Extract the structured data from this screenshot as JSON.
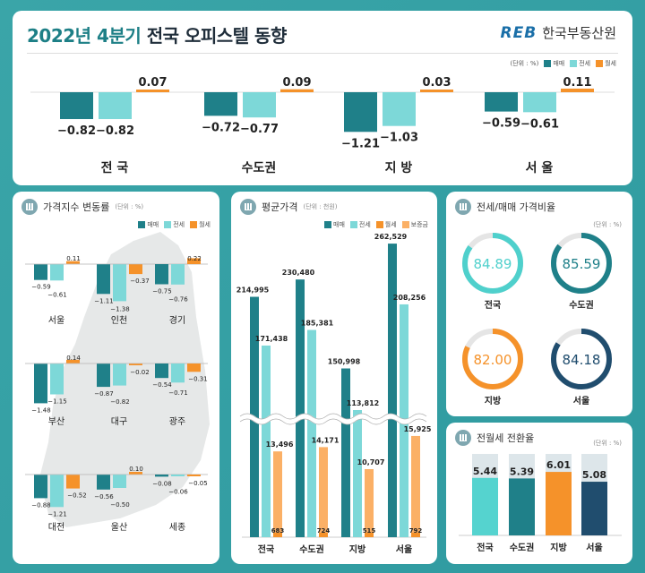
{
  "header": {
    "title_highlight": "2022년 4분기",
    "title_rest": " 전국 오피스텔 동향",
    "logo_mark": "REB",
    "logo_text": "한국부동산원",
    "unit": "(단위 : %)"
  },
  "legend": {
    "sale": "매매",
    "jeonse": "전세",
    "wolse": "월세",
    "deposit": "보증금"
  },
  "colors": {
    "sale": "#1f8089",
    "jeonse": "#7dd8d8",
    "wolse": "#f5922a",
    "deposit": "#fbb066",
    "seoul": "#204d6e",
    "gray": "#e5e5e5"
  },
  "summary": {
    "groups": [
      {
        "label": "전 국",
        "sale": -0.82,
        "jeonse": -0.82,
        "wolse": 0.07
      },
      {
        "label": "수도권",
        "sale": -0.72,
        "jeonse": -0.77,
        "wolse": 0.09
      },
      {
        "label": "지 방",
        "sale": -1.21,
        "jeonse": -1.03,
        "wolse": 0.03
      },
      {
        "label": "서 울",
        "sale": -0.59,
        "jeonse": -0.61,
        "wolse": 0.11
      }
    ]
  },
  "index_change": {
    "title": "가격지수 변동률",
    "unit": "(단위 : %)",
    "regions": [
      {
        "label": "서울",
        "sale": -0.59,
        "jeonse": -0.61,
        "wolse": 0.11
      },
      {
        "label": "인천",
        "sale": -1.11,
        "jeonse": -1.38,
        "wolse": -0.37
      },
      {
        "label": "경기",
        "sale": -0.75,
        "jeonse": -0.76,
        "wolse": 0.22
      },
      {
        "label": "부산",
        "sale": -1.48,
        "jeonse": -1.15,
        "wolse": 0.14
      },
      {
        "label": "대구",
        "sale": -0.87,
        "jeonse": -0.82,
        "wolse": -0.02
      },
      {
        "label": "광주",
        "sale": -0.54,
        "jeonse": -0.71,
        "wolse": -0.31
      },
      {
        "label": "대전",
        "sale": -0.88,
        "jeonse": -1.21,
        "wolse": -0.52
      },
      {
        "label": "울산",
        "sale": -0.56,
        "jeonse": -0.5,
        "wolse": 0.1
      },
      {
        "label": "세종",
        "sale": -0.08,
        "jeonse": -0.06,
        "wolse": -0.05
      }
    ]
  },
  "avg_price": {
    "title": "평균가격",
    "unit": "(단위 : 천원)",
    "groups": [
      {
        "label": "전국",
        "sale": "214,995",
        "jeonse": "171,438",
        "deposit": "13,496",
        "wolse": "683"
      },
      {
        "label": "수도권",
        "sale": "230,480",
        "jeonse": "185,381",
        "deposit": "14,171",
        "wolse": "724"
      },
      {
        "label": "지방",
        "sale": "150,998",
        "jeonse": "113,812",
        "deposit": "10,707",
        "wolse": "515"
      },
      {
        "label": "서울",
        "sale": "262,529",
        "jeonse": "208,256",
        "deposit": "15,925",
        "wolse": "792"
      }
    ]
  },
  "ratio": {
    "title": "전세/매매 가격비율",
    "unit": "(단위 : %)",
    "items": [
      {
        "label": "전국",
        "value": "84.89",
        "color": "#4fd0cc"
      },
      {
        "label": "수도권",
        "value": "85.59",
        "color": "#1f8089"
      },
      {
        "label": "지방",
        "value": "82.00",
        "color": "#f5922a"
      },
      {
        "label": "서울",
        "value": "84.18",
        "color": "#204d6e"
      }
    ]
  },
  "conversion": {
    "title": "전월세 전환율",
    "unit": "(단위 : %)",
    "items": [
      {
        "label": "전국",
        "value": "5.44",
        "color": "#55d3cf"
      },
      {
        "label": "수도권",
        "value": "5.39",
        "color": "#1f8089"
      },
      {
        "label": "지방",
        "value": "6.01",
        "color": "#f5922a"
      },
      {
        "label": "서울",
        "value": "5.08",
        "color": "#204d6e"
      }
    ]
  }
}
